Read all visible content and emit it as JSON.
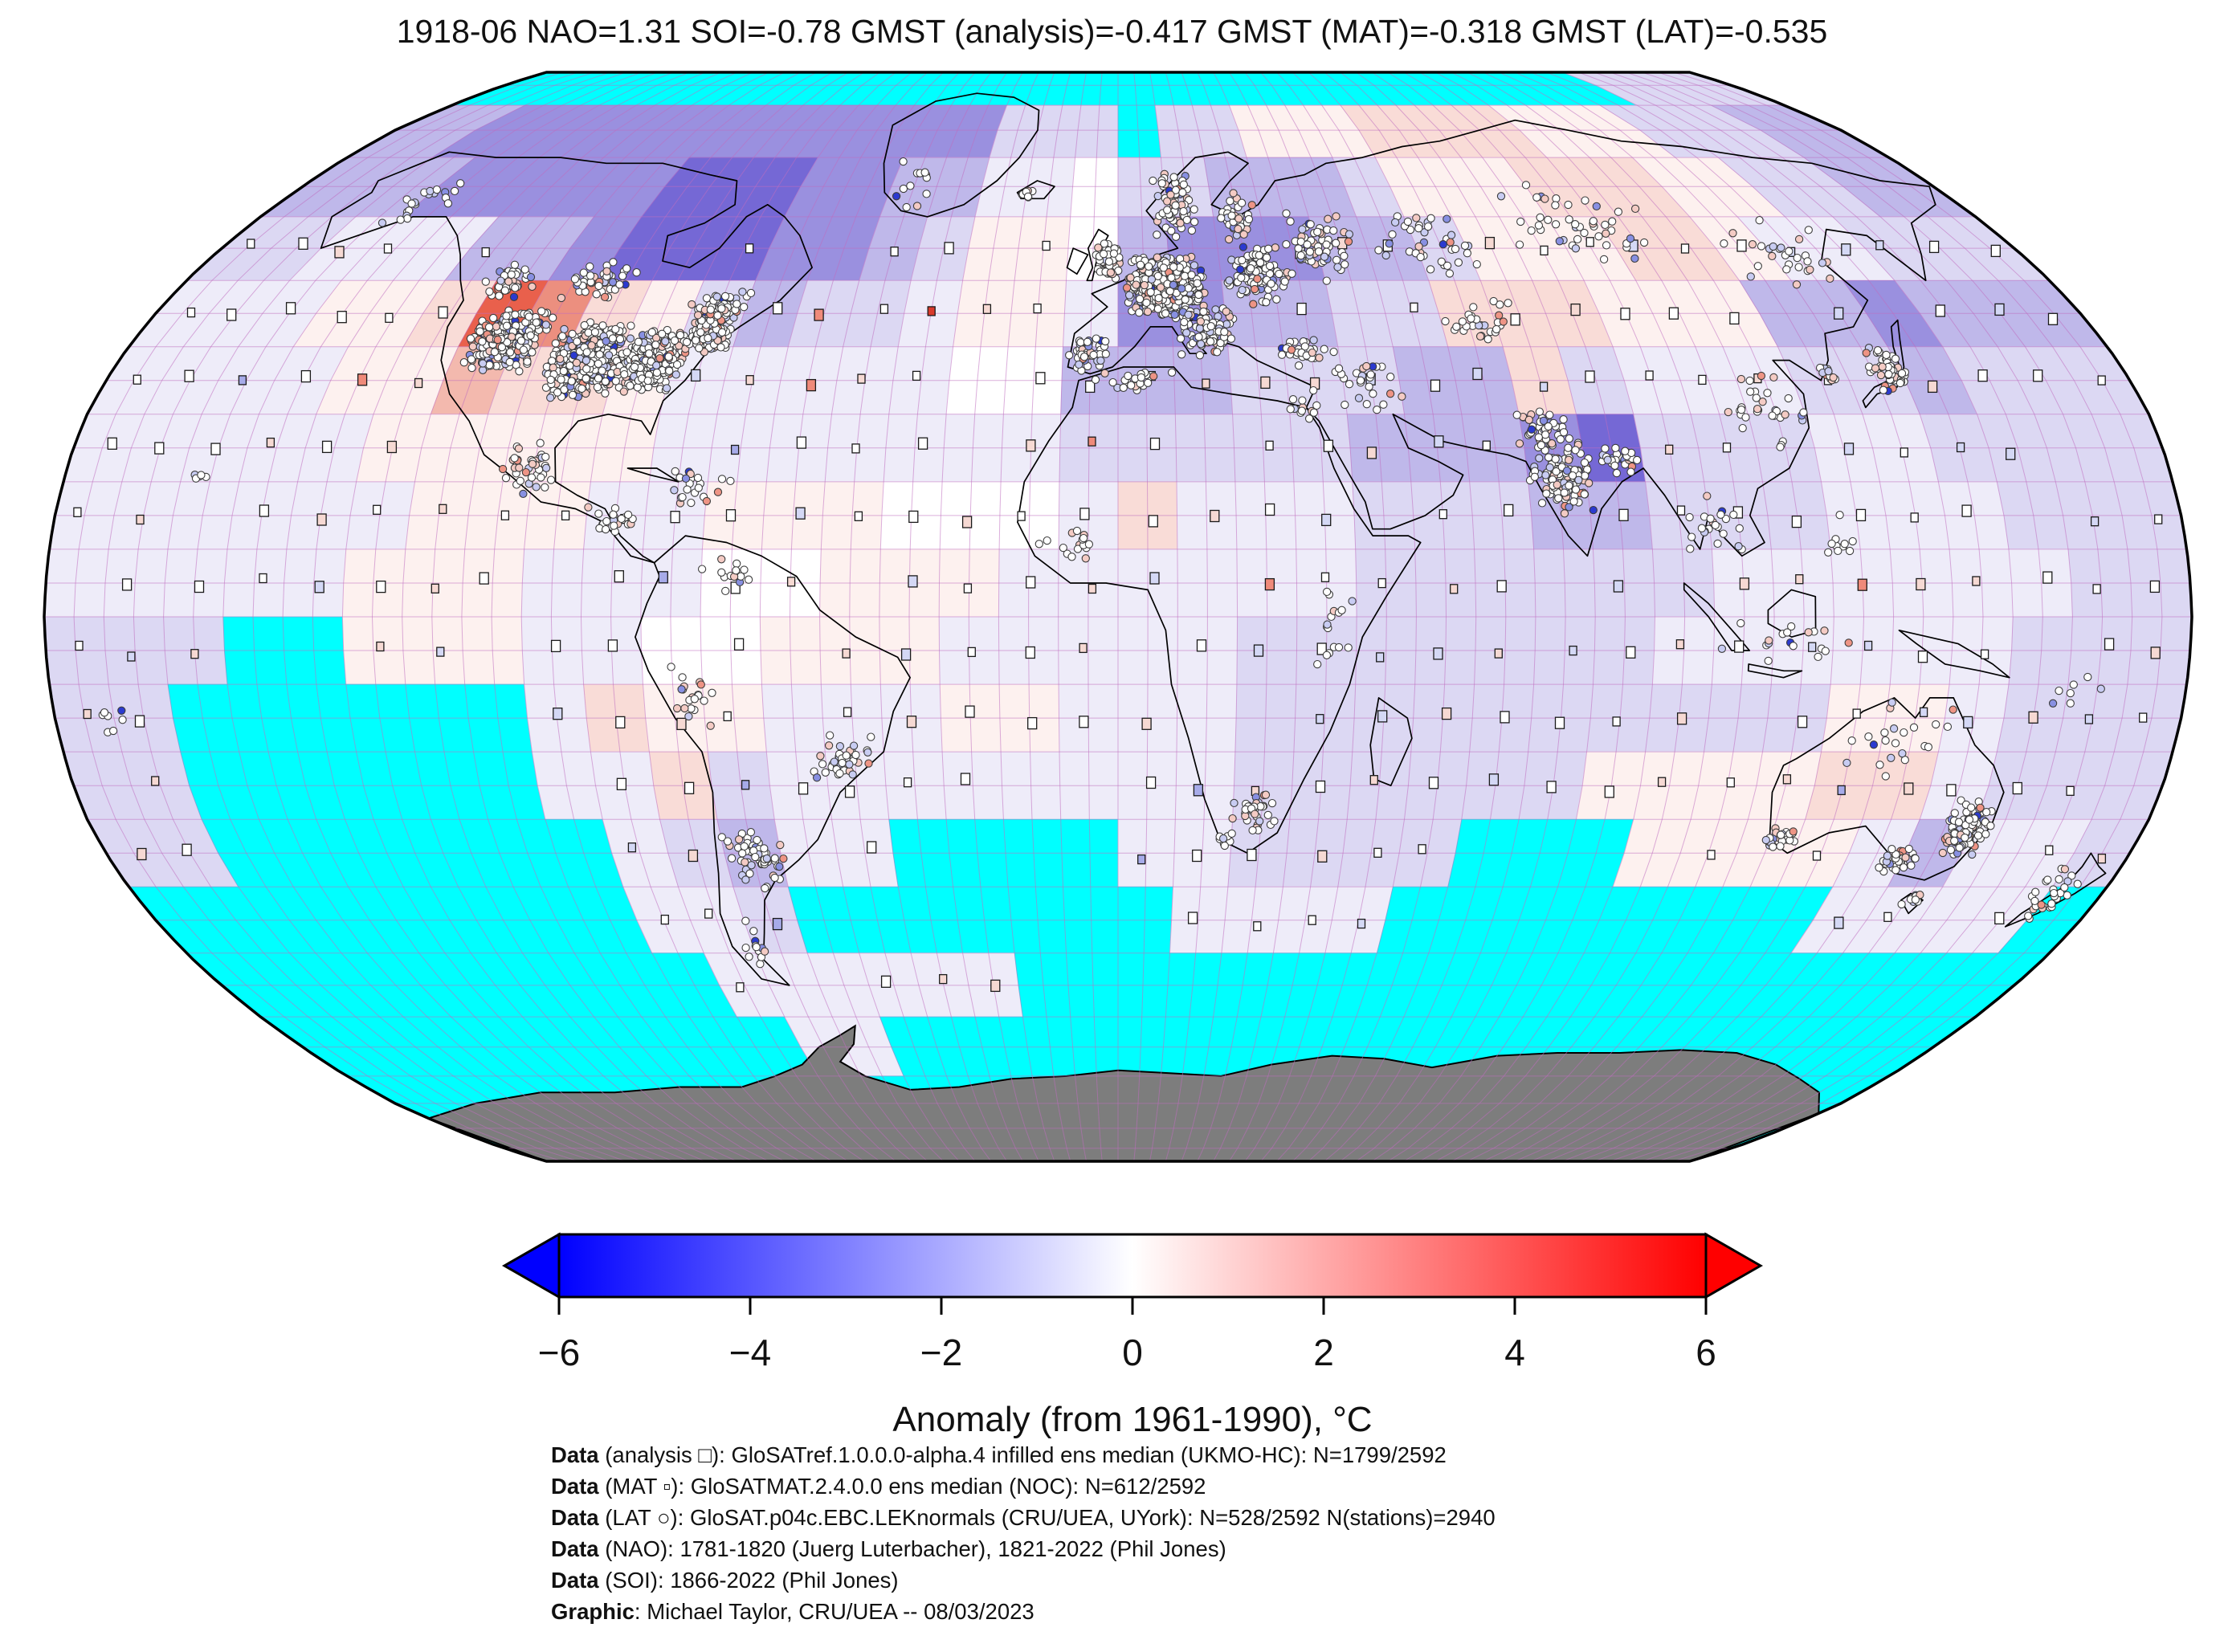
{
  "title": "1918-06 NAO=1.31 SOI=-0.78 GMST (analysis)=-0.417 GMST (MAT)=-0.318 GMST (LAT)=-0.535",
  "readings": {
    "month": "1918-06",
    "NAO": "1.31",
    "SOI": "-0.78",
    "GMST_analysis": "-0.417",
    "GMST_MAT": "-0.318",
    "GMST_LAT": "-0.535"
  },
  "colorbar": {
    "label": "Anomaly (from 1961-1990), °C",
    "ticks": [
      "−6",
      "−4",
      "−2",
      "0",
      "2",
      "4",
      "6"
    ],
    "tick_values": [
      -6,
      -4,
      -2,
      0,
      2,
      4,
      6
    ],
    "left_color": "#0000ff",
    "mid_color": "#ffffff",
    "right_color": "#ff0000"
  },
  "captions": [
    {
      "bold": "Data",
      "rest": " (analysis □): GloSATref.1.0.0.0-alpha.4 infilled ens median (UKMO-HC): N=1799/2592"
    },
    {
      "bold": "Data",
      "rest": " (MAT ▫): GloSATMAT.2.4.0.0 ens median (NOC): N=612/2592"
    },
    {
      "bold": "Data",
      "rest": " (LAT ○): GloSAT.p04c.EBC.LEKnormals (CRU/UEA, UYork): N=528/2592 N(stations)=2940"
    },
    {
      "bold": "Data",
      "rest": " (NAO): 1781-1820 (Juerg Luterbacher), 1821-2022 (Phil Jones)"
    },
    {
      "bold": "Data",
      "rest": " (SOI): 1866-2022 (Phil Jones)"
    },
    {
      "bold": "Graphic",
      "rest": ": Michael Taylor, CRU/UEA -- 08/03/2023"
    }
  ],
  "map": {
    "projection": "robinson",
    "grid_deg": 5,
    "cell_deg": 10,
    "no_data_color": "#00ffff",
    "antarctica_color": "#7d7d7d",
    "graticule_color": "#c06ec0",
    "ocean_base_color": "#f0edfa",
    "palette": {
      "0": "#ffffff",
      "a": "#eeecf9",
      "b": "#dcd8f3",
      "c": "#bfb8ea",
      "d": "#9a90df",
      "e": "#7568d5",
      "1": "#fdf1ef",
      "2": "#f9dcd7",
      "3": "#f3b9ae",
      "4": "#ec8f7f",
      "5": "#e9604c",
      "6": "#ef3b24",
      "C": "#00ffff"
    },
    "grid_rows": [
      "CCCCCCCCCCCCCCCCCCCCCCCCCCCCCCCCbbbb",
      "ccdddddddddddddbbbCbb1112222111bbbcc",
      "cccdddddeeeddccaa0bbcccb11122211bbcc",
      "bbaaaccdeeeddcb110cdddccb111221aabbb",
      "aaa1125421bcbba11addccbb222111ccdccc",
      "aaaa113221aaaaa00cccbbbcc2baaabbcbbb",
      "aaaaa11111aaaaaaabbbbbcccdebbbaabbbb",
      "aaaaaa111aa111000a2aaabbbccbbbaaabbb",
      "aaaaa111aaa00111aaaaaabbbbbbaaaaaabb",
      "bbbCC111aa00111aaaaabbbbbbbaaaaaabbb",
      "bbCCCCCCa211aaa11aaabbbbbbbbbb11abbb",
      "bbCCCCCCaa2baaaaaaaabbbbbb111122abbb",
      "bbCCCCCCCabcaaCCCCaabbbbCCC1111acaab",
      "CCCCCCCCCaabCCCCCCCaaaaCCCCCCCCaaaaC",
      "CCCCCCCCCCaaaaaaCCCCCCCCCCCCCCCCCCCC",
      "CCCCCCCCCCCaaCCCCCCCCCCCCCCCCCCCCCCC",
      "CCCCCCCCCCCCCCCCCCCCCCCCCCCCCCCCCCCC",
      "CCCCCCCCCCCCCCCCCCCCCCCCCCCCCCCCCCCC"
    ],
    "station_clusters": [
      [
        -112,
        41,
        7,
        5,
        300
      ],
      [
        -96,
        38,
        7,
        6,
        450
      ],
      [
        -84,
        38,
        6,
        5,
        400
      ],
      [
        -75,
        42,
        4,
        3,
        160
      ],
      [
        -117,
        50,
        6,
        3,
        45
      ],
      [
        -100,
        50,
        7,
        3,
        45
      ],
      [
        -75,
        46,
        6,
        3,
        60
      ],
      [
        -101,
        22,
        5,
        4,
        40
      ],
      [
        -86,
        14,
        5,
        3,
        22
      ],
      [
        -72,
        19,
        7,
        3,
        22
      ],
      [
        -149,
        62,
        6,
        4,
        20
      ],
      [
        -45,
        65,
        5,
        6,
        12
      ],
      [
        -20,
        64,
        2,
        1,
        7
      ],
      [
        9,
        49,
        8,
        5,
        520
      ],
      [
        -2,
        53,
        3,
        3,
        70
      ],
      [
        -5,
        39,
        4,
        3,
        45
      ],
      [
        16,
        42,
        6,
        4,
        90
      ],
      [
        12,
        62,
        5,
        6,
        65
      ],
      [
        25,
        60,
        4,
        4,
        40
      ],
      [
        27,
        51,
        7,
        5,
        110
      ],
      [
        40,
        55,
        8,
        6,
        60
      ],
      [
        62,
        56,
        10,
        6,
        40
      ],
      [
        95,
        59,
        16,
        7,
        45
      ],
      [
        132,
        55,
        12,
        7,
        28
      ],
      [
        68,
        44,
        8,
        4,
        28
      ],
      [
        44,
        35,
        8,
        5,
        28
      ],
      [
        33,
        39,
        5,
        3,
        30
      ],
      [
        76,
        21,
        6,
        6,
        120
      ],
      [
        74,
        28,
        5,
        3,
        40
      ],
      [
        86,
        23,
        4,
        3,
        28
      ],
      [
        138,
        37,
        4,
        4,
        55
      ],
      [
        127,
        36,
        2,
        2,
        12
      ],
      [
        114,
        31,
        8,
        7,
        32
      ],
      [
        101,
        14,
        5,
        6,
        22
      ],
      [
        112,
        -4,
        12,
        4,
        18
      ],
      [
        122,
        11,
        3,
        5,
        10
      ],
      [
        149,
        -32,
        4,
        5,
        110
      ],
      [
        139,
        -36,
        4,
        2,
        40
      ],
      [
        117,
        -33,
        3,
        2,
        25
      ],
      [
        133,
        -18,
        9,
        6,
        22
      ],
      [
        146,
        -42,
        2,
        1,
        8
      ],
      [
        171,
        -41,
        4,
        4,
        30
      ],
      [
        -64,
        -36,
        6,
        5,
        65
      ],
      [
        -47,
        -21,
        6,
        4,
        40
      ],
      [
        -72,
        -12,
        4,
        7,
        20
      ],
      [
        -66,
        6,
        6,
        3,
        14
      ],
      [
        -70,
        -48,
        3,
        4,
        12
      ],
      [
        24,
        -29,
        5,
        3,
        32
      ],
      [
        19,
        -33,
        2,
        1,
        8
      ],
      [
        3,
        35,
        9,
        2,
        22
      ],
      [
        -6,
        11,
        8,
        4,
        16
      ],
      [
        36,
        -1,
        4,
        8,
        16
      ],
      [
        32,
        31,
        4,
        3,
        12
      ],
      [
        -157,
        21,
        2,
        1,
        5
      ],
      [
        -170,
        -16,
        8,
        4,
        7
      ],
      [
        162,
        -12,
        8,
        4,
        7
      ]
    ]
  }
}
